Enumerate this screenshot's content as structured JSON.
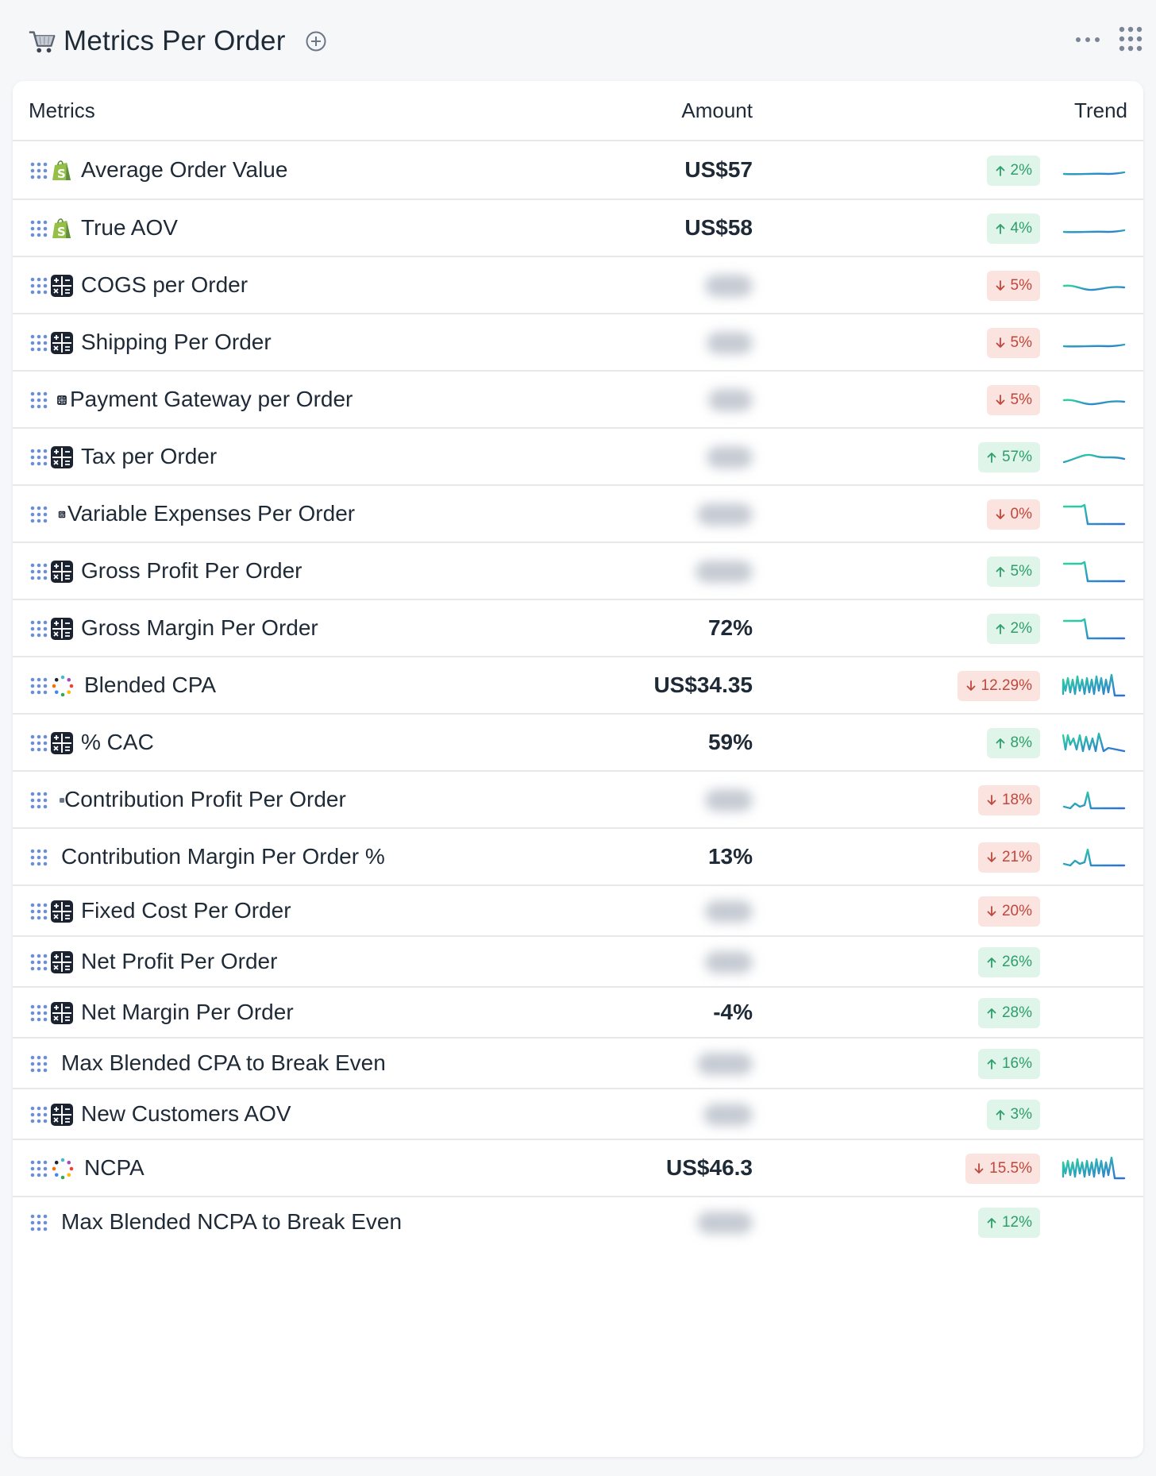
{
  "header": {
    "title": "Metrics Per Order",
    "icons": {
      "title_icon": "shopping-cart-icon",
      "add": "plus-circle-icon",
      "more": "more-horizontal-icon",
      "apps": "grid-dots-icon"
    }
  },
  "table": {
    "columns": {
      "metrics": "Metrics",
      "amount": "Amount",
      "trend": "Trend"
    },
    "rows": [
      {
        "name": "Average Order Value",
        "icon": "shopify",
        "amount": "US$57",
        "change": "2%",
        "dir": "up",
        "spark": "flat"
      },
      {
        "name": "True AOV",
        "icon": "shopify",
        "amount": "US$58",
        "change": "4%",
        "dir": "up",
        "spark": "flat"
      },
      {
        "name": "COGS per Order",
        "icon": "calculator",
        "amount": "",
        "change": "5%",
        "dir": "down",
        "spark": "wavy"
      },
      {
        "name": "Shipping Per Order",
        "icon": "calculator",
        "amount": "",
        "change": "5%",
        "dir": "down",
        "spark": "flat"
      },
      {
        "name": "Payment Gateway per Order",
        "icon": "calculator-small",
        "amount": "",
        "change": "5%",
        "dir": "down",
        "spark": "wavy"
      },
      {
        "name": "Tax per Order",
        "icon": "calculator",
        "amount": "",
        "change": "57%",
        "dir": "up",
        "spark": "hump"
      },
      {
        "name": "Variable Expenses Per Order",
        "icon": "calculator-tiny",
        "amount": "",
        "change": "0%",
        "dir": "down",
        "spark": "step"
      },
      {
        "name": "Gross Profit Per Order",
        "icon": "calculator",
        "amount": "",
        "change": "5%",
        "dir": "up",
        "spark": "step"
      },
      {
        "name": "Gross Margin Per Order",
        "icon": "calculator",
        "amount": "72%",
        "change": "2%",
        "dir": "up",
        "spark": "step"
      },
      {
        "name": "Blended CPA",
        "icon": "dots-ring",
        "amount": "US$34.35",
        "change": "12.29%",
        "dir": "down",
        "spark": "spiky"
      },
      {
        "name": "% CAC",
        "icon": "calculator",
        "amount": "59%",
        "change": "8%",
        "dir": "up",
        "spark": "spiky2"
      },
      {
        "name": "Contribution Profit Per Order",
        "icon": "dot",
        "amount": "",
        "change": "18%",
        "dir": "down",
        "spark": "peak"
      },
      {
        "name": "Contribution Margin Per Order %",
        "icon": "none",
        "amount": "13%",
        "change": "21%",
        "dir": "down",
        "spark": "peak"
      },
      {
        "name": "Fixed Cost Per Order",
        "icon": "calculator",
        "amount": "",
        "change": "20%",
        "dir": "down",
        "spark": "none"
      },
      {
        "name": "Net Profit Per Order",
        "icon": "calculator",
        "amount": "",
        "change": "26%",
        "dir": "up",
        "spark": "none"
      },
      {
        "name": "Net Margin Per Order",
        "icon": "calculator",
        "amount": "-4%",
        "change": "28%",
        "dir": "up",
        "spark": "none"
      },
      {
        "name": "Max Blended CPA to Break Even",
        "icon": "none",
        "amount": "",
        "change": "16%",
        "dir": "up",
        "spark": "none"
      },
      {
        "name": "New Customers AOV",
        "icon": "calculator",
        "amount": "",
        "change": "3%",
        "dir": "up",
        "spark": "none"
      },
      {
        "name": "NCPA",
        "icon": "dots-ring",
        "amount": "US$46.3",
        "change": "15.5%",
        "dir": "down",
        "spark": "spiky"
      },
      {
        "name": "Max Blended NCPA to Break Even",
        "icon": "none",
        "amount": "",
        "change": "12%",
        "dir": "up",
        "spark": "none"
      }
    ]
  },
  "colors": {
    "up_bg": "#dff5ea",
    "up_text": "#2e9e6a",
    "down_bg": "#fbe3e0",
    "down_text": "#c0473b",
    "spark_a": "#2ad6a0",
    "spark_b": "#2f6fd6",
    "handle": "#6b8fd6"
  }
}
